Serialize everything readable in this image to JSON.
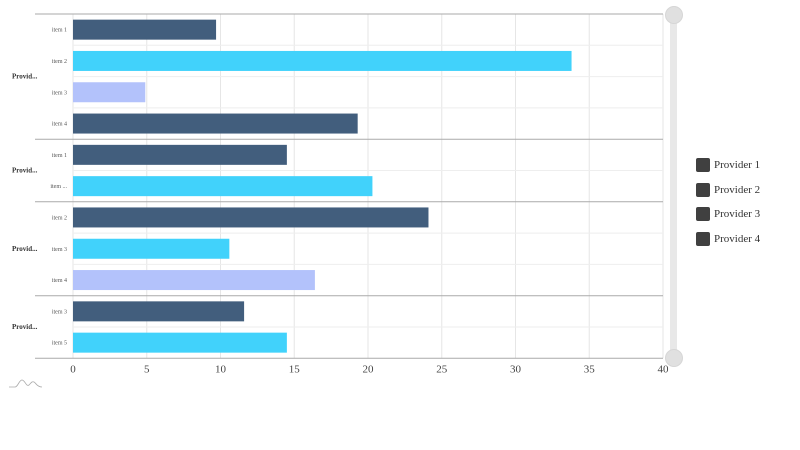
{
  "chart_data": {
    "type": "bar",
    "orientation": "horizontal",
    "title": "",
    "xlabel": "",
    "ylabel": "",
    "xlim": [
      0,
      40
    ],
    "x_ticks": [
      "0",
      "5",
      "10",
      "15",
      "20",
      "25",
      "30",
      "35",
      "40"
    ],
    "grid": true,
    "legend_position": "right",
    "groups": [
      {
        "label": "Provid...",
        "full_label": "Provider 1",
        "items": [
          {
            "label": "item 1",
            "value": 9.7,
            "color": "#425e7d"
          },
          {
            "label": "item 2",
            "value": 33.8,
            "color": "#41d2fb"
          },
          {
            "label": "item 3",
            "value": 4.9,
            "color": "#b3c2fb"
          },
          {
            "label": "item 4",
            "value": 19.3,
            "color": "#425e7d"
          }
        ]
      },
      {
        "label": "Provid...",
        "full_label": "Provider 2",
        "items": [
          {
            "label": "item 1",
            "value": 14.5,
            "color": "#425e7d"
          },
          {
            "label": "item ...",
            "value": 20.3,
            "color": "#41d2fb"
          }
        ]
      },
      {
        "label": "Provid...",
        "full_label": "Provider 3",
        "items": [
          {
            "label": "item 2",
            "value": 24.1,
            "color": "#425e7d"
          },
          {
            "label": "item 3",
            "value": 10.6,
            "color": "#41d2fb"
          },
          {
            "label": "item 4",
            "value": 16.4,
            "color": "#b3c2fb"
          }
        ]
      },
      {
        "label": "Provid...",
        "full_label": "Provider 4",
        "items": [
          {
            "label": "item 3",
            "value": 11.6,
            "color": "#425e7d"
          },
          {
            "label": "item 5",
            "value": 14.5,
            "color": "#41d2fb"
          }
        ]
      }
    ],
    "legend": [
      "Provider 1",
      "Provider 2",
      "Provider 3",
      "Provider 4"
    ]
  },
  "legend": {
    "items": [
      {
        "label": "Provider 1"
      },
      {
        "label": "Provider 2"
      },
      {
        "label": "Provider 3"
      },
      {
        "label": "Provider 4"
      }
    ]
  }
}
